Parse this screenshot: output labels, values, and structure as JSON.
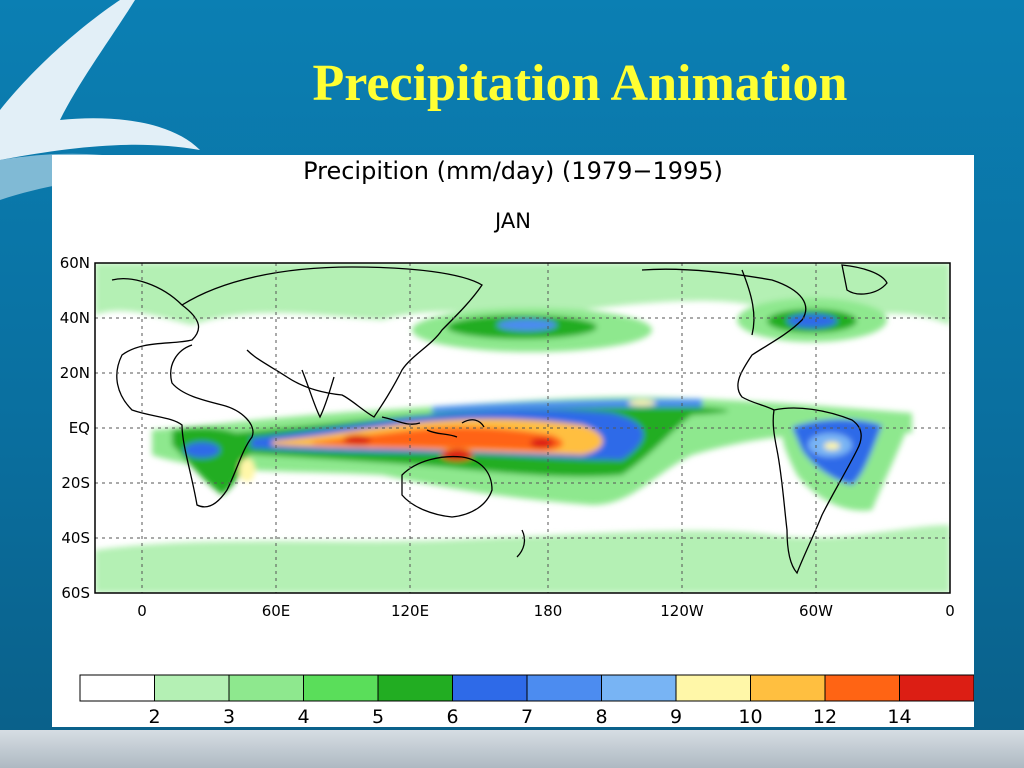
{
  "slide": {
    "title": "Precipitation Animation"
  },
  "map": {
    "title": "Precipition (mm/day) (1979−1995)",
    "subtitle": "JAN",
    "lat_labels": [
      "60N",
      "40N",
      "20N",
      "EQ",
      "20S",
      "40S",
      "60S"
    ],
    "lat_values": [
      60,
      40,
      20,
      0,
      -20,
      -40,
      -60
    ],
    "lon_labels": [
      "0",
      "60E",
      "120E",
      "180",
      "120W",
      "60W",
      "0"
    ],
    "lon_values": [
      0,
      60,
      120,
      180,
      240,
      300,
      360
    ],
    "land_color": "#ffffff",
    "coast_color": "#000000",
    "colorbar": {
      "labels": [
        "2",
        "3",
        "4",
        "5",
        "6",
        "7",
        "8",
        "9",
        "10",
        "12",
        "14"
      ],
      "colors": [
        "#ffffff",
        "#b4f0b4",
        "#8ee88e",
        "#5ade5a",
        "#22ad22",
        "#2e6ae8",
        "#4c8cf0",
        "#78b4f4",
        "#fff7a8",
        "#ffbf40",
        "#ff6414",
        "#dc1e14"
      ]
    }
  }
}
